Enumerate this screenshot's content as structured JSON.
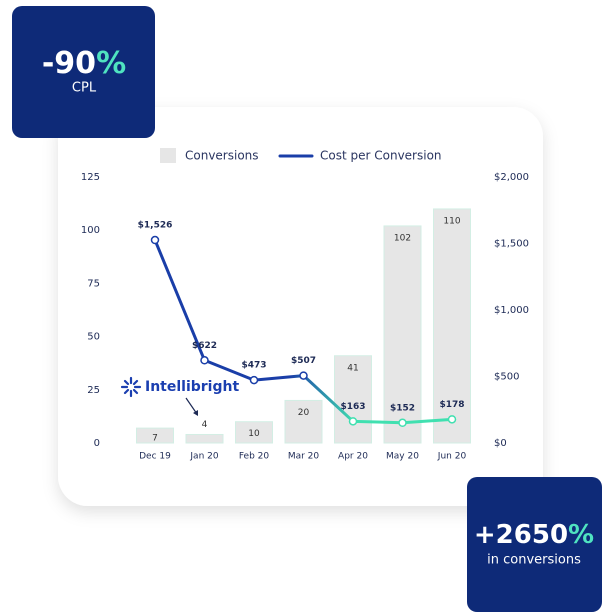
{
  "chart_data": {
    "type": "bar-line",
    "categories": [
      "Dec 19",
      "Jan 20",
      "Feb 20",
      "Mar 20",
      "Apr 20",
      "May 20",
      "Jun 20"
    ],
    "series": [
      {
        "name": "Conversions",
        "type": "bar",
        "color": "#e6e6e6",
        "values": [
          7,
          4,
          10,
          20,
          41,
          102,
          110
        ]
      },
      {
        "name": "Cost per Conversion",
        "type": "line",
        "axis": "y2",
        "color": "#1a3ea8",
        "gradient_to": "#40e0b0",
        "values": [
          1526,
          622,
          473,
          507,
          163,
          152,
          178
        ],
        "value_labels": [
          "$1,526",
          "$622",
          "$473",
          "$507",
          "$163",
          "$152",
          "$178"
        ]
      }
    ],
    "ylim": [
      0,
      125
    ],
    "yticks": [
      0,
      25,
      50,
      75,
      100,
      125
    ],
    "y2lim": [
      0,
      2000
    ],
    "y2ticks": [
      {
        "value": 0,
        "label": "$0"
      },
      {
        "value": 500,
        "label": "$500"
      },
      {
        "value": 1000,
        "label": "$1,000"
      },
      {
        "value": 1500,
        "label": "$1,500"
      },
      {
        "value": 2000,
        "label": "$2,000"
      }
    ],
    "grid": false
  },
  "logo": "Intellibright",
  "badges": [
    {
      "value": "-90",
      "unit": "%",
      "label": "CPL"
    },
    {
      "value": "+2650",
      "unit": "%",
      "label": "in conversions"
    }
  ]
}
